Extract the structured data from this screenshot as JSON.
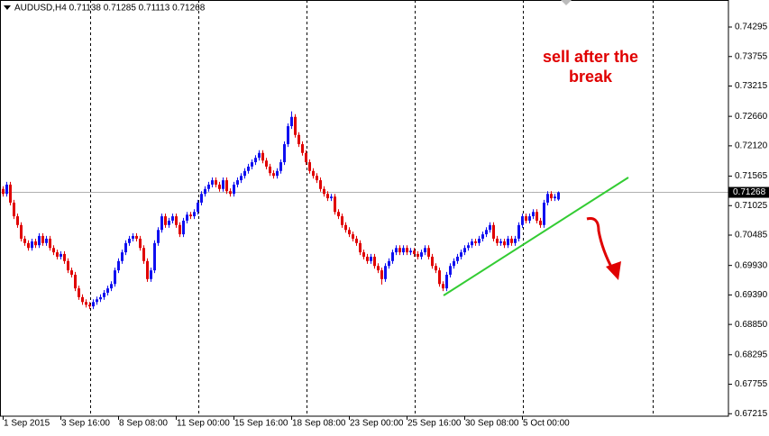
{
  "chart_data": {
    "type": "candlestick",
    "title": "AUDUSD,H4  0.71138 0.71285 0.71113 0.71268",
    "annotation_lines": [
      "sell after the",
      "break"
    ],
    "up_color": "#1010f0",
    "down_color": "#e00000",
    "current_price": 0.71268,
    "ylim": [
      0.6717,
      0.7479
    ],
    "yticks": [
      0.74295,
      0.73755,
      0.73215,
      {
        "value": 0.7266,
        "label": "0.72660"
      },
      {
        "value": 0.7212,
        "label": "0.72120"
      },
      0.71565,
      0.71025,
      0.70485,
      {
        "value": 0.6993,
        "label": "0.69930"
      },
      {
        "value": 0.6939,
        "label": "0.69390"
      },
      {
        "value": 0.6885,
        "label": "0.68850"
      },
      0.68295,
      0.67755,
      0.67215
    ],
    "categories": [
      "1 Sep 2015",
      null,
      null,
      null,
      null,
      null,
      null,
      null,
      null,
      null,
      null,
      null,
      null,
      null,
      null,
      null,
      "3 Sep 16:00",
      null,
      null,
      null,
      null,
      null,
      null,
      null,
      null,
      null,
      null,
      null,
      null,
      null,
      null,
      null,
      "8 Sep 08:00",
      null,
      null,
      null,
      null,
      null,
      null,
      null,
      null,
      null,
      null,
      null,
      null,
      null,
      null,
      null,
      "11 Sep 00:00",
      null,
      null,
      null,
      null,
      null,
      null,
      null,
      null,
      null,
      null,
      null,
      null,
      null,
      null,
      null,
      "15 Sep 16:00",
      null,
      null,
      null,
      null,
      null,
      null,
      null,
      null,
      null,
      null,
      null,
      null,
      null,
      null,
      null,
      "18 Sep 08:00",
      null,
      null,
      null,
      null,
      null,
      null,
      null,
      null,
      null,
      null,
      null,
      null,
      null,
      null,
      null,
      "23 Sep 00:00",
      null,
      null,
      null,
      null,
      null,
      null,
      null,
      null,
      null,
      null,
      null,
      null,
      null,
      null,
      null,
      "25 Sep 16:00",
      null,
      null,
      null,
      null,
      null,
      null,
      null,
      null,
      null,
      null,
      null,
      null,
      null,
      null,
      null,
      "30 Sep 08:00",
      null,
      null,
      null,
      null,
      null,
      null,
      null,
      null,
      null,
      null,
      null,
      null,
      null,
      null,
      null,
      "5 Oct 00:00",
      null,
      null,
      null,
      null,
      null,
      null,
      null,
      null,
      null,
      null
    ],
    "open": [
      0.7133,
      0.7124,
      0.7141,
      0.7108,
      0.7083,
      0.7067,
      0.7042,
      0.7034,
      0.7025,
      0.7037,
      0.703,
      0.7047,
      0.7034,
      0.7042,
      0.7025,
      0.7017,
      0.7009,
      0.7014,
      0.7001,
      0.6984,
      0.6976,
      0.6951,
      0.6935,
      0.6926,
      0.6921,
      0.6918,
      0.6926,
      0.6931,
      0.6935,
      0.6943,
      0.6951,
      0.6959,
      0.6984,
      0.7001,
      0.7017,
      0.7034,
      0.7042,
      0.7047,
      0.7042,
      0.7025,
      0.7001,
      0.6968,
      0.6984,
      0.7034,
      0.7058,
      0.7083,
      0.7067,
      0.7075,
      0.7083,
      0.7067,
      0.705,
      0.7075,
      0.7086,
      0.7083,
      0.7091,
      0.7108,
      0.7124,
      0.7133,
      0.7141,
      0.7149,
      0.7141,
      0.7133,
      0.7149,
      0.7129,
      0.7124,
      0.7141,
      0.7149,
      0.7157,
      0.7166,
      0.7174,
      0.7182,
      0.719,
      0.7199,
      0.7185,
      0.7174,
      0.7162,
      0.7157,
      0.7166,
      0.7182,
      0.7215,
      0.7248,
      0.7265,
      0.7232,
      0.7215,
      0.7199,
      0.7182,
      0.7166,
      0.7157,
      0.7149,
      0.7133,
      0.7124,
      0.7116,
      0.7119,
      0.7091,
      0.7083,
      0.7067,
      0.7058,
      0.705,
      0.7042,
      0.7034,
      0.7017,
      0.7009,
      0.7001,
      0.7009,
      0.6992,
      0.6984,
      0.6968,
      0.6992,
      0.7001,
      0.7017,
      0.7025,
      0.7017,
      0.7025,
      0.7017,
      0.702,
      0.7014,
      0.7009,
      0.7017,
      0.7025,
      0.7009,
      0.6992,
      0.6984,
      0.6959,
      0.6951,
      0.6976,
      0.6992,
      0.7001,
      0.7009,
      0.7017,
      0.7025,
      0.703,
      0.7037,
      0.7034,
      0.7042,
      0.705,
      0.7058,
      0.7067,
      0.7042,
      0.7034,
      0.7037,
      0.703,
      0.7042,
      0.7034,
      0.7042,
      0.7067,
      0.7083,
      0.7075,
      0.7083,
      0.7091,
      0.7075,
      0.7067,
      0.7108,
      0.7124,
      0.7116,
      0.71138
    ],
    "high": [
      0.7138,
      0.7146,
      0.7146,
      0.7113,
      0.7088,
      0.7072,
      0.7047,
      0.7039,
      0.7042,
      0.7042,
      0.7052,
      0.7052,
      0.7047,
      0.7047,
      0.703,
      0.7022,
      0.7019,
      0.7019,
      0.7006,
      0.6989,
      0.6981,
      0.6956,
      0.694,
      0.6931,
      0.6926,
      0.6931,
      0.6936,
      0.694,
      0.6948,
      0.6956,
      0.6964,
      0.6989,
      0.7006,
      0.7022,
      0.7039,
      0.7047,
      0.7052,
      0.7052,
      0.7047,
      0.703,
      0.7006,
      0.6989,
      0.7039,
      0.7063,
      0.7088,
      0.7088,
      0.708,
      0.7088,
      0.7088,
      0.7072,
      0.708,
      0.7091,
      0.7091,
      0.7096,
      0.7113,
      0.7129,
      0.7138,
      0.7146,
      0.7154,
      0.7154,
      0.7146,
      0.7154,
      0.7154,
      0.7134,
      0.7146,
      0.7154,
      0.7162,
      0.7171,
      0.7179,
      0.7187,
      0.7195,
      0.7204,
      0.7204,
      0.719,
      0.7179,
      0.7167,
      0.7171,
      0.7187,
      0.722,
      0.7253,
      0.7275,
      0.727,
      0.7237,
      0.722,
      0.7204,
      0.7187,
      0.7171,
      0.7162,
      0.7154,
      0.7138,
      0.7129,
      0.7124,
      0.7124,
      0.7096,
      0.7088,
      0.7072,
      0.7063,
      0.7055,
      0.7047,
      0.7039,
      0.7022,
      0.7014,
      0.7014,
      0.7014,
      0.6997,
      0.6989,
      0.6997,
      0.7006,
      0.7022,
      0.703,
      0.703,
      0.703,
      0.703,
      0.7025,
      0.7025,
      0.7019,
      0.7022,
      0.703,
      0.703,
      0.7014,
      0.6997,
      0.6989,
      0.6964,
      0.6981,
      0.6997,
      0.7006,
      0.7014,
      0.7022,
      0.703,
      0.7035,
      0.7042,
      0.7042,
      0.7047,
      0.7055,
      0.7063,
      0.7072,
      0.7072,
      0.7047,
      0.7042,
      0.7042,
      0.7047,
      0.7047,
      0.7047,
      0.7072,
      0.7088,
      0.7088,
      0.7088,
      0.7096,
      0.7096,
      0.708,
      0.7113,
      0.7129,
      0.7129,
      0.7124,
      0.71285
    ],
    "low": [
      0.7119,
      0.7119,
      0.7103,
      0.7078,
      0.7062,
      0.7037,
      0.7029,
      0.702,
      0.702,
      0.7025,
      0.7025,
      0.7029,
      0.7029,
      0.702,
      0.7012,
      0.7004,
      0.7004,
      0.6996,
      0.6979,
      0.6971,
      0.6946,
      0.693,
      0.6921,
      0.6916,
      0.6913,
      0.6913,
      0.6921,
      0.6926,
      0.693,
      0.6938,
      0.6946,
      0.6954,
      0.6979,
      0.6996,
      0.7012,
      0.7029,
      0.7037,
      0.7037,
      0.702,
      0.6996,
      0.6963,
      0.6963,
      0.6979,
      0.7029,
      0.7053,
      0.7062,
      0.7062,
      0.707,
      0.7062,
      0.7045,
      0.7045,
      0.707,
      0.7078,
      0.7078,
      0.7086,
      0.7103,
      0.7119,
      0.7128,
      0.7136,
      0.7136,
      0.7128,
      0.7128,
      0.7124,
      0.7119,
      0.7119,
      0.7136,
      0.7144,
      0.7152,
      0.7161,
      0.7169,
      0.7177,
      0.7185,
      0.718,
      0.7169,
      0.7157,
      0.7152,
      0.7152,
      0.7161,
      0.7177,
      0.721,
      0.7243,
      0.7227,
      0.721,
      0.7194,
      0.7177,
      0.7161,
      0.7152,
      0.7144,
      0.7128,
      0.7119,
      0.7111,
      0.7111,
      0.7086,
      0.7078,
      0.7062,
      0.7053,
      0.7045,
      0.7037,
      0.7029,
      0.7012,
      0.7004,
      0.6996,
      0.6996,
      0.6987,
      0.6979,
      0.6958,
      0.6963,
      0.6987,
      0.6996,
      0.7012,
      0.7012,
      0.7012,
      0.7012,
      0.7012,
      0.7009,
      0.7004,
      0.7004,
      0.7012,
      0.7004,
      0.6987,
      0.6979,
      0.6954,
      0.6946,
      0.6946,
      0.6971,
      0.6987,
      0.6996,
      0.7004,
      0.7012,
      0.702,
      0.7025,
      0.7029,
      0.7029,
      0.7037,
      0.7045,
      0.7053,
      0.7037,
      0.7029,
      0.7029,
      0.7025,
      0.7025,
      0.7029,
      0.7029,
      0.7037,
      0.7062,
      0.707,
      0.707,
      0.7078,
      0.707,
      0.7062,
      0.7062,
      0.7103,
      0.7111,
      0.7111,
      0.71113
    ],
    "close": [
      0.7124,
      0.7141,
      0.7108,
      0.7083,
      0.7067,
      0.7042,
      0.7034,
      0.7025,
      0.7037,
      0.703,
      0.7047,
      0.7034,
      0.7042,
      0.7025,
      0.7017,
      0.7009,
      0.7014,
      0.7001,
      0.6984,
      0.6976,
      0.6951,
      0.6935,
      0.6926,
      0.6921,
      0.6918,
      0.6926,
      0.6931,
      0.6935,
      0.6943,
      0.6951,
      0.6959,
      0.6984,
      0.7001,
      0.7017,
      0.7034,
      0.7042,
      0.7047,
      0.7042,
      0.7025,
      0.7001,
      0.6968,
      0.6984,
      0.7034,
      0.7058,
      0.7083,
      0.7067,
      0.7075,
      0.7083,
      0.7067,
      0.705,
      0.7075,
      0.7086,
      0.7083,
      0.7091,
      0.7108,
      0.7124,
      0.7133,
      0.7141,
      0.7149,
      0.7141,
      0.7133,
      0.7149,
      0.7129,
      0.7124,
      0.7141,
      0.7149,
      0.7157,
      0.7166,
      0.7174,
      0.7182,
      0.719,
      0.7199,
      0.7185,
      0.7174,
      0.7162,
      0.7157,
      0.7166,
      0.7182,
      0.7215,
      0.7248,
      0.7265,
      0.7232,
      0.7215,
      0.7199,
      0.7182,
      0.7166,
      0.7157,
      0.7149,
      0.7133,
      0.7124,
      0.7116,
      0.7119,
      0.7091,
      0.7083,
      0.7067,
      0.7058,
      0.705,
      0.7042,
      0.7034,
      0.7017,
      0.7009,
      0.7001,
      0.7009,
      0.6992,
      0.6984,
      0.6968,
      0.6992,
      0.7001,
      0.7017,
      0.7025,
      0.7017,
      0.7025,
      0.7017,
      0.702,
      0.7014,
      0.7009,
      0.7017,
      0.7025,
      0.7009,
      0.6992,
      0.6984,
      0.6959,
      0.6951,
      0.6976,
      0.6992,
      0.7001,
      0.7009,
      0.7017,
      0.7025,
      0.703,
      0.7037,
      0.7034,
      0.7042,
      0.705,
      0.7058,
      0.7067,
      0.7042,
      0.7034,
      0.7037,
      0.703,
      0.7042,
      0.7034,
      0.7042,
      0.7067,
      0.7083,
      0.7075,
      0.7083,
      0.7091,
      0.7075,
      0.7067,
      0.7108,
      0.7124,
      0.7116,
      0.7119,
      0.71268
    ]
  }
}
